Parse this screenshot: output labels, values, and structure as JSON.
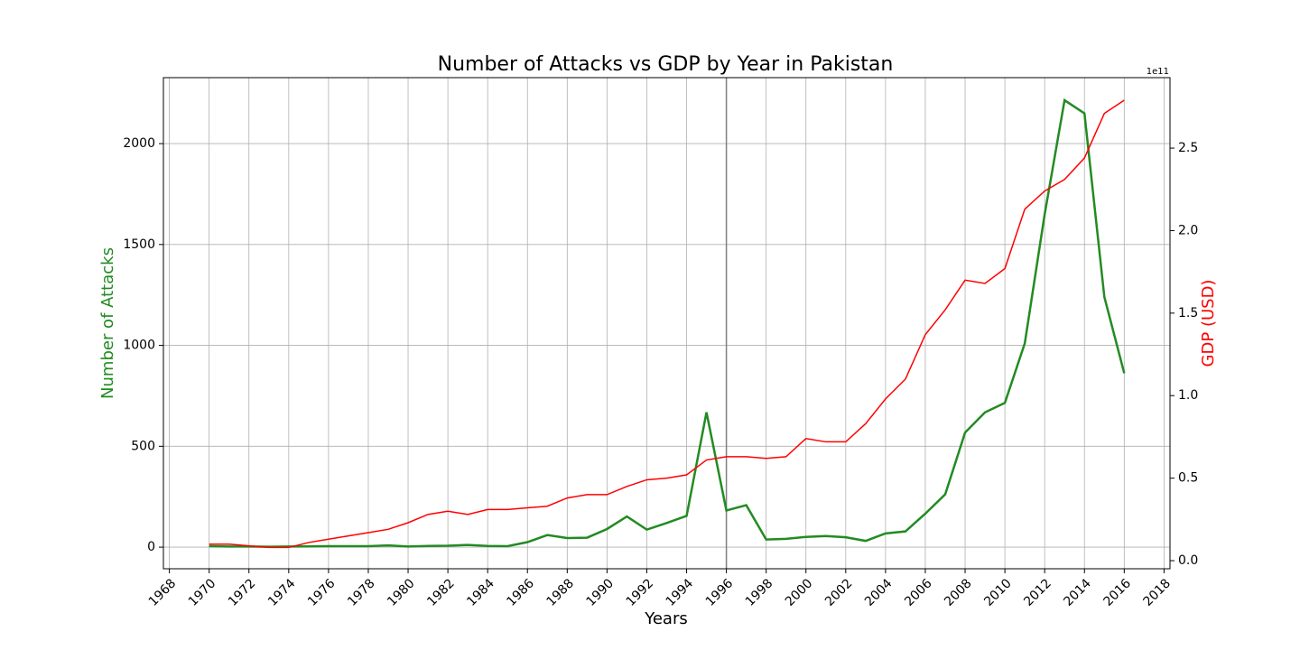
{
  "chart_data": {
    "type": "line",
    "title": "Number of Attacks vs GDP by Year in Pakistan",
    "x_label": "Years",
    "y_label": "Number of Attacks",
    "y2_label": "GDP (USD)",
    "y2_offset_label": "1e11",
    "x": [
      1970,
      1971,
      1972,
      1973,
      1974,
      1975,
      1976,
      1977,
      1978,
      1979,
      1980,
      1981,
      1982,
      1983,
      1984,
      1985,
      1986,
      1987,
      1988,
      1989,
      1990,
      1991,
      1992,
      1993,
      1994,
      1995,
      1996,
      1997,
      1998,
      1999,
      2000,
      2001,
      2002,
      2003,
      2004,
      2005,
      2006,
      2007,
      2008,
      2009,
      2010,
      2011,
      2012,
      2013,
      2014,
      2015,
      2016
    ],
    "series": [
      {
        "name": "Number of Attacks",
        "color": "#228b22",
        "values": [
          5,
          3,
          3,
          2,
          3,
          4,
          5,
          5,
          5,
          9,
          3,
          6,
          7,
          11,
          6,
          5,
          25,
          60,
          45,
          47,
          90,
          152,
          87,
          120,
          155,
          668,
          182,
          208,
          38,
          41,
          51,
          55,
          49,
          31,
          68,
          78,
          166,
          262,
          568,
          668,
          715,
          1010,
          1650,
          2215,
          2150,
          1240,
          862
        ]
      },
      {
        "name": "GDP (USD)",
        "color": "#ff0000",
        "axis": "y2",
        "values": [
          0.1,
          0.1,
          0.09,
          0.08,
          0.08,
          0.11,
          0.13,
          0.15,
          0.17,
          0.19,
          0.23,
          0.28,
          0.3,
          0.28,
          0.31,
          0.31,
          0.32,
          0.33,
          0.38,
          0.4,
          0.4,
          0.45,
          0.49,
          0.5,
          0.52,
          0.61,
          0.63,
          0.63,
          0.62,
          0.63,
          0.74,
          0.72,
          0.72,
          0.83,
          0.98,
          1.1,
          1.37,
          1.52,
          1.7,
          1.68,
          1.77,
          2.13,
          2.24,
          2.31,
          2.44,
          2.71,
          2.79
        ]
      }
    ],
    "xlim": [
      1967.7,
      2018.3
    ],
    "xticks": [
      1968,
      1970,
      1972,
      1974,
      1976,
      1978,
      1980,
      1982,
      1984,
      1986,
      1988,
      1990,
      1992,
      1994,
      1996,
      1998,
      2000,
      2002,
      2004,
      2006,
      2008,
      2010,
      2012,
      2014,
      2016,
      2018
    ],
    "ylim": [
      -107,
      2327
    ],
    "yticks": [
      0,
      500,
      1000,
      1500,
      2000
    ],
    "y2lim": [
      -0.049,
      2.927
    ],
    "y2ticks": [
      {
        "value": 0,
        "label": "0.0"
      },
      0.5,
      {
        "value": 1,
        "label": "1.0"
      },
      1.5,
      {
        "value": 2,
        "label": "2.0"
      },
      2.5
    ],
    "vline": 1996,
    "grid": true
  }
}
